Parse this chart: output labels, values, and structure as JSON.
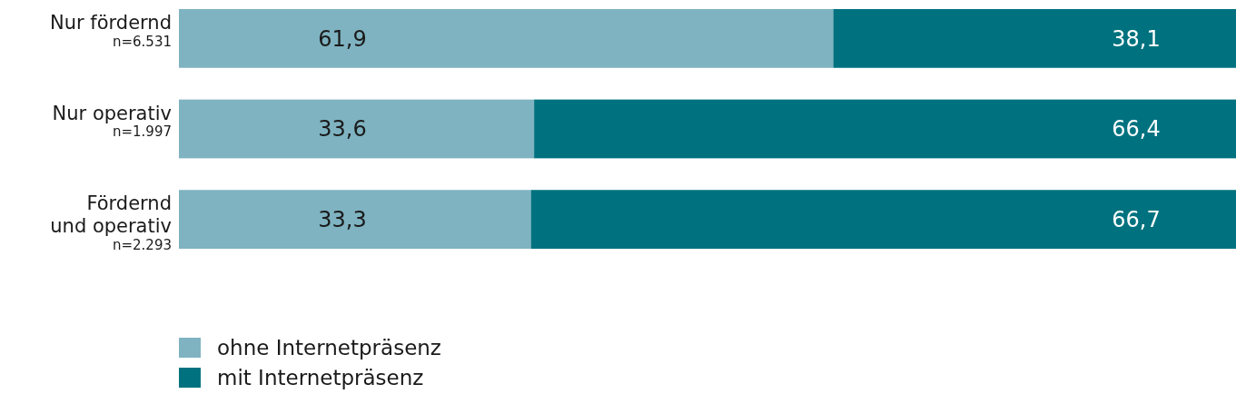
{
  "chart_data": {
    "type": "bar",
    "orientation": "horizontal",
    "stacked": true,
    "legend": "bottom left",
    "categories": [
      "Nur fördernd\nn=6.531",
      "Nur operativ\nn=1.997",
      "Fördernd\nund operativ\nn=2.293"
    ],
    "series": [
      {
        "name": "ohne Internetpräsenz",
        "color": "#7fb3c1",
        "values": [
          61.9,
          33.6,
          33.3
        ],
        "value_labels": [
          "61,9",
          "33,6",
          "33,3"
        ]
      },
      {
        "name": "mit Internetpräsenz",
        "color": "#00727f",
        "values": [
          38.1,
          66.4,
          66.7
        ],
        "value_labels": [
          "38,1",
          "66,4",
          "66,7"
        ]
      }
    ]
  }
}
